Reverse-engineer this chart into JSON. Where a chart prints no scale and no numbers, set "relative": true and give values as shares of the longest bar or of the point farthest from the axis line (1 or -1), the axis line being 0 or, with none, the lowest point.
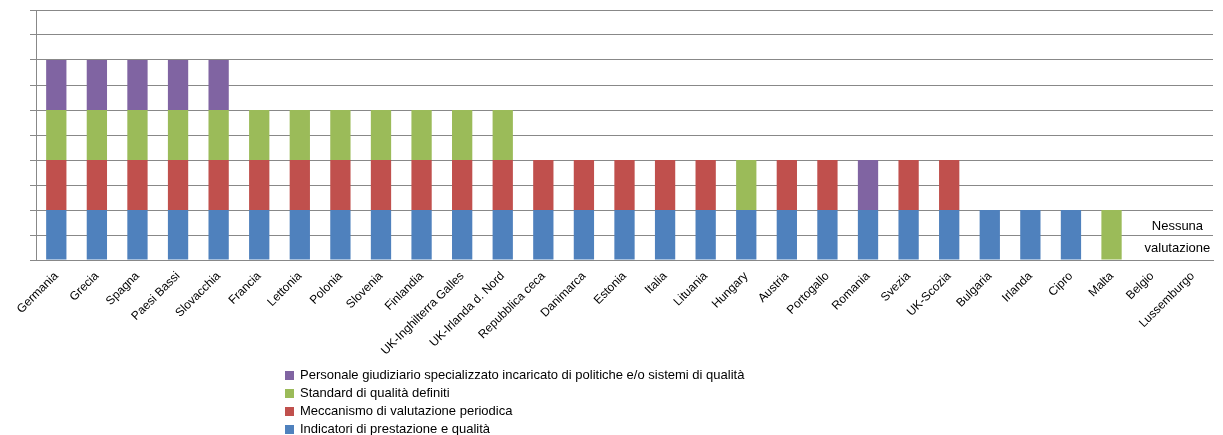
{
  "chart_data": {
    "type": "bar",
    "stacked": true,
    "relative": true,
    "grid": "y",
    "legend": "bottom",
    "categories": [
      "Germania",
      "Grecia",
      "Spagna",
      "Paesi Bassi",
      "Slovacchia",
      "Francia",
      "Lettonia",
      "Polonia",
      "Slovenia",
      "Finlandia",
      "UK-Inghilterra Galles",
      "UK-Irlanda d. Nord",
      "Repubblica ceca",
      "Danimarca",
      "Estonia",
      "Italia",
      "Lituania",
      "Hungary",
      "Austria",
      "Portogallo",
      "Romania",
      "Svezia",
      "UK-Scozia",
      "Bulgaria",
      "Irlanda",
      "Cipro",
      "Malta",
      "Belgio",
      "Lussemburgo"
    ],
    "series": [
      {
        "name": "Indicatori di prestazione e qualità",
        "color": "#4f81bd",
        "values": [
          0.25,
          0.25,
          0.25,
          0.25,
          0.25,
          0.25,
          0.25,
          0.25,
          0.25,
          0.25,
          0.25,
          0.25,
          0.25,
          0.25,
          0.25,
          0.25,
          0.25,
          0.25,
          0.25,
          0.25,
          0.25,
          0.25,
          0.25,
          0.25,
          0.25,
          0.25,
          null,
          null,
          null
        ]
      },
      {
        "name": "Meccanismo di valutazione periodica",
        "color": "#c0504d",
        "values": [
          0.25,
          0.25,
          0.25,
          0.25,
          0.25,
          0.25,
          0.25,
          0.25,
          0.25,
          0.25,
          0.25,
          0.25,
          0.25,
          0.25,
          0.25,
          0.25,
          0.25,
          null,
          0.25,
          0.25,
          null,
          0.25,
          0.25,
          null,
          null,
          null,
          null,
          null,
          null
        ]
      },
      {
        "name": "Standard di qualità definiti",
        "color": "#9bbb59",
        "values": [
          0.25,
          0.25,
          0.25,
          0.25,
          0.25,
          0.25,
          0.25,
          0.25,
          0.25,
          0.25,
          0.25,
          0.25,
          null,
          null,
          null,
          null,
          null,
          0.25,
          null,
          null,
          null,
          null,
          null,
          null,
          null,
          null,
          0.25,
          null,
          null
        ]
      },
      {
        "name": "Personale giudiziario specializzato incaricato di politiche e/o sistemi di qualità",
        "color": "#8064a2",
        "values": [
          0.25,
          0.25,
          0.25,
          0.25,
          0.25,
          null,
          null,
          null,
          null,
          null,
          null,
          null,
          null,
          null,
          null,
          null,
          null,
          null,
          null,
          null,
          0.25,
          null,
          null,
          null,
          null,
          null,
          null,
          null,
          null
        ]
      }
    ],
    "annotations": [
      "Nessuna valutazione"
    ]
  }
}
